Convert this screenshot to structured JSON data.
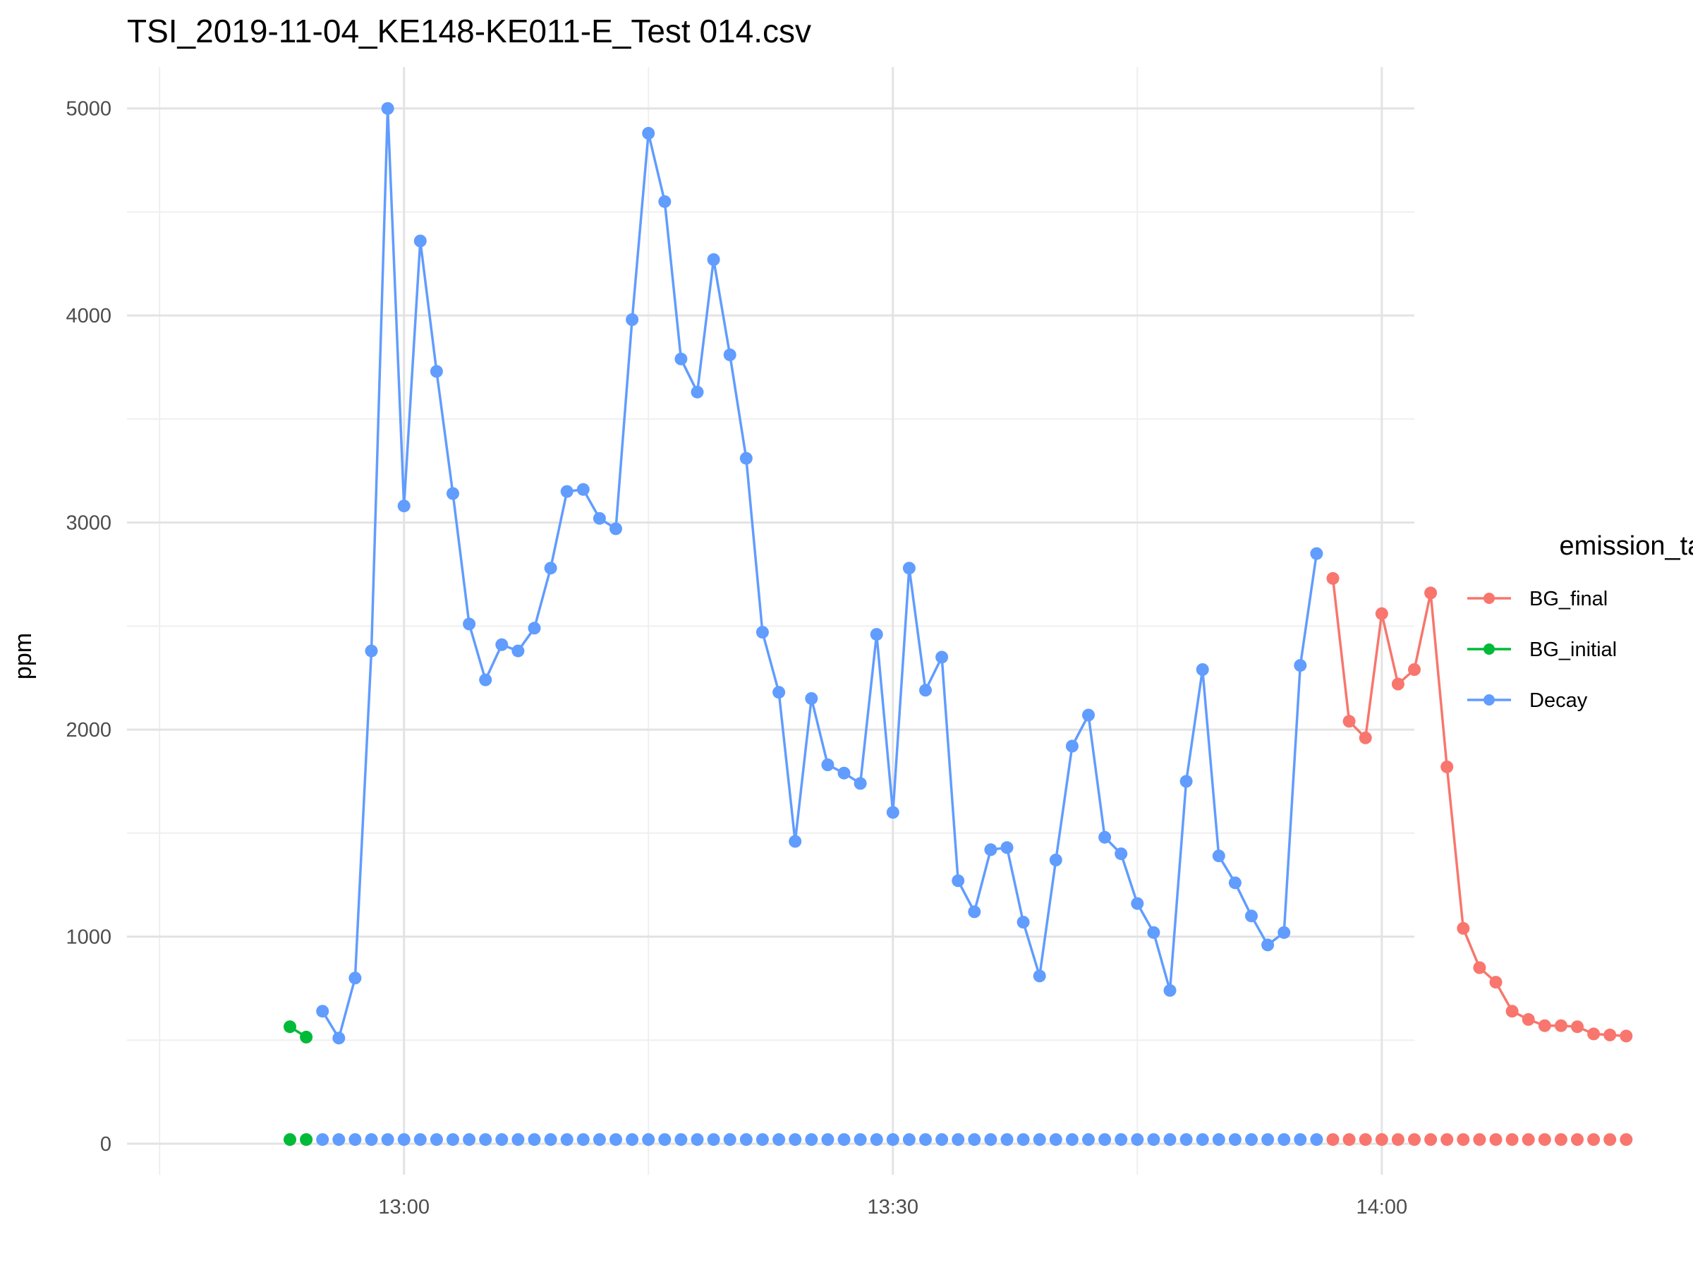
{
  "chart_data": {
    "type": "line",
    "title": "TSI_2019-11-04_KE148-KE011-E_Test 014.csv",
    "xlabel": "",
    "ylabel": "ppm",
    "x_range_minutes": [
      -17,
      62
    ],
    "x_ticks": [
      {
        "minute": 0,
        "label": "13:00"
      },
      {
        "minute": 30,
        "label": "13:30"
      },
      {
        "minute": 60,
        "label": "14:00"
      }
    ],
    "ylim": [
      -150,
      5200
    ],
    "y_ticks": [
      0,
      1000,
      2000,
      3000,
      4000,
      5000
    ],
    "grid": true,
    "legend": {
      "title": "emission_tags",
      "position": "right",
      "entries": [
        {
          "name": "BG_final",
          "color": "#F8766D"
        },
        {
          "name": "BG_initial",
          "color": "#00BA38"
        },
        {
          "name": "Decay",
          "color": "#619CFF"
        }
      ]
    },
    "series": [
      {
        "name": "BG_initial",
        "color": "#00BA38",
        "x": [
          "12:53",
          "12:54"
        ],
        "y": [
          565,
          515
        ]
      },
      {
        "name": "Decay",
        "color": "#619CFF",
        "x": [
          "12:55",
          "12:56",
          "12:57",
          "12:58",
          "12:59",
          "13:00",
          "13:01",
          "13:02",
          "13:03",
          "13:04",
          "13:05",
          "13:06",
          "13:07",
          "13:08",
          "13:09",
          "13:10",
          "13:11",
          "13:12",
          "13:13",
          "13:14",
          "13:15",
          "13:16",
          "13:17",
          "13:18",
          "13:19",
          "13:20",
          "13:21",
          "13:22",
          "13:23",
          "13:24",
          "13:25",
          "13:26",
          "13:27",
          "13:28",
          "13:29",
          "13:30",
          "13:31",
          "13:32",
          "13:33",
          "13:34",
          "13:35",
          "13:36",
          "13:37",
          "13:38",
          "13:39",
          "13:40",
          "13:41",
          "13:42",
          "13:43",
          "13:44",
          "13:45",
          "13:46",
          "13:47",
          "13:48",
          "13:49",
          "13:50",
          "13:51",
          "13:52",
          "13:53",
          "13:54",
          "13:55",
          "13:56"
        ],
        "y": [
          640,
          510,
          800,
          2380,
          5000,
          3080,
          4360,
          3730,
          3140,
          2510,
          2240,
          2410,
          2380,
          2490,
          2780,
          3150,
          3160,
          3020,
          2970,
          3980,
          4880,
          4550,
          3790,
          3630,
          4270,
          3810,
          3310,
          2470,
          2180,
          1460,
          2150,
          1830,
          1790,
          1740,
          2460,
          1600,
          2780,
          2190,
          2350,
          1270,
          1120,
          1420,
          1430,
          1070,
          810,
          1370,
          1920,
          2070,
          1480,
          1400,
          1160,
          1020,
          740,
          1750,
          2290,
          1390,
          1260,
          1100,
          960,
          1020,
          2310,
          2850
        ]
      },
      {
        "name": "BG_final",
        "color": "#F8766D",
        "x": [
          "13:57",
          "13:58",
          "13:59",
          "14:00",
          "14:01",
          "14:02",
          "14:03",
          "14:04",
          "14:05",
          "14:06",
          "14:07",
          "14:08",
          "14:09",
          "14:10",
          "14:11",
          "14:12",
          "14:13",
          "14:14",
          "14:15"
        ],
        "y": [
          2730,
          2040,
          1960,
          2560,
          2220,
          2290,
          2660,
          1820,
          1040,
          850,
          780,
          640,
          600,
          570,
          570,
          565,
          530,
          525,
          520
        ]
      },
      {
        "name": "BG_initial",
        "color": "#00BA38",
        "x": [
          "12:53",
          "12:54"
        ],
        "y": [
          20,
          20
        ],
        "points_only": true
      },
      {
        "name": "Decay",
        "color": "#619CFF",
        "x": [
          "12:55",
          "12:56",
          "12:57",
          "12:58",
          "12:59",
          "13:00",
          "13:01",
          "13:02",
          "13:03",
          "13:04",
          "13:05",
          "13:06",
          "13:07",
          "13:08",
          "13:09",
          "13:10",
          "13:11",
          "13:12",
          "13:13",
          "13:14",
          "13:15",
          "13:16",
          "13:17",
          "13:18",
          "13:19",
          "13:20",
          "13:21",
          "13:22",
          "13:23",
          "13:24",
          "13:25",
          "13:26",
          "13:27",
          "13:28",
          "13:29",
          "13:30",
          "13:31",
          "13:32",
          "13:33",
          "13:34",
          "13:35",
          "13:36",
          "13:37",
          "13:38",
          "13:39",
          "13:40",
          "13:41",
          "13:42",
          "13:43",
          "13:44",
          "13:45",
          "13:46",
          "13:47",
          "13:48",
          "13:49",
          "13:50",
          "13:51",
          "13:52",
          "13:53",
          "13:54",
          "13:55",
          "13:56"
        ],
        "y": [
          20,
          20,
          20,
          20,
          20,
          20,
          20,
          20,
          20,
          20,
          20,
          20,
          20,
          20,
          20,
          20,
          20,
          20,
          20,
          20,
          20,
          20,
          20,
          20,
          20,
          20,
          20,
          20,
          20,
          20,
          20,
          20,
          20,
          20,
          20,
          20,
          20,
          20,
          20,
          20,
          20,
          20,
          20,
          20,
          20,
          20,
          20,
          20,
          20,
          20,
          20,
          20,
          20,
          20,
          20,
          20,
          20,
          20,
          20,
          20,
          20,
          20
        ],
        "points_only": true
      },
      {
        "name": "BG_final",
        "color": "#F8766D",
        "x": [
          "13:57",
          "13:58",
          "13:59",
          "14:00",
          "14:01",
          "14:02",
          "14:03",
          "14:04",
          "14:05",
          "14:06",
          "14:07",
          "14:08",
          "14:09",
          "14:10",
          "14:11",
          "14:12",
          "14:13",
          "14:14",
          "14:15"
        ],
        "y": [
          20,
          20,
          20,
          20,
          20,
          20,
          20,
          20,
          20,
          20,
          20,
          20,
          20,
          20,
          20,
          20,
          20,
          20,
          20
        ],
        "points_only": true
      }
    ]
  }
}
